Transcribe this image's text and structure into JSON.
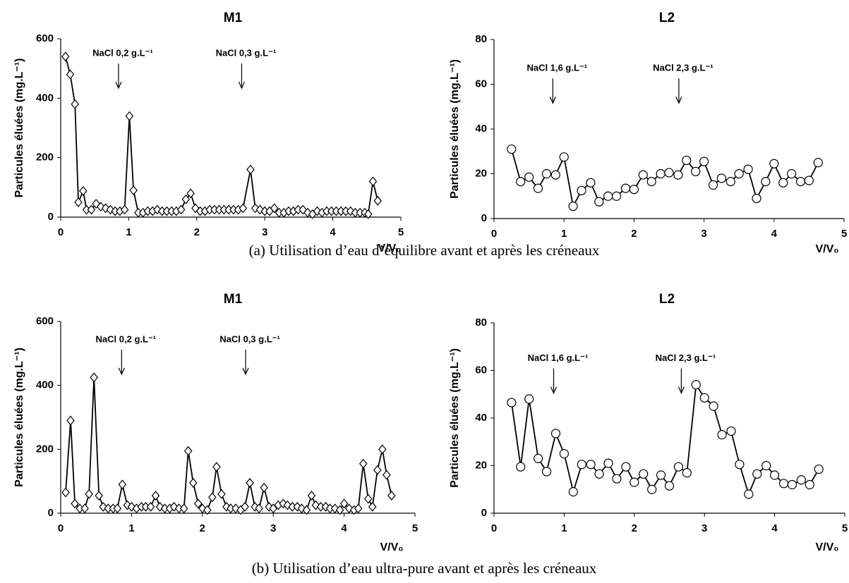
{
  "chart_data": [
    {
      "type": "line",
      "title": "M1",
      "xlabel": "V/V₀",
      "ylabel": "Particules éluées (mg.L⁻¹)",
      "marker": "diamond",
      "color": "#000000",
      "xlim": [
        0,
        5
      ],
      "xticks": [
        0,
        1,
        2,
        3,
        4,
        5
      ],
      "ylim": [
        0,
        600
      ],
      "yticks": [
        0,
        200,
        400,
        600
      ],
      "annotations": [
        {
          "text": "NaCl 0,2 g.L⁻¹",
          "x": 0.85,
          "y": 550
        },
        {
          "text": "NaCl 0,3 g.L⁻¹",
          "x": 2.66,
          "y": 550
        }
      ],
      "x": [
        0.07,
        0.14,
        0.21,
        0.26,
        0.33,
        0.38,
        0.45,
        0.52,
        0.59,
        0.66,
        0.73,
        0.8,
        0.87,
        0.94,
        1.01,
        1.07,
        1.14,
        1.21,
        1.28,
        1.35,
        1.42,
        1.49,
        1.56,
        1.63,
        1.7,
        1.77,
        1.84,
        1.91,
        1.98,
        2.05,
        2.12,
        2.19,
        2.26,
        2.33,
        2.4,
        2.47,
        2.54,
        2.61,
        2.68,
        2.79,
        2.86,
        2.93,
        3.0,
        3.07,
        3.14,
        3.21,
        3.28,
        3.35,
        3.42,
        3.49,
        3.56,
        3.63,
        3.7,
        3.77,
        3.84,
        3.91,
        3.98,
        4.05,
        4.12,
        4.19,
        4.26,
        4.33,
        4.4,
        4.47,
        4.52,
        4.59,
        4.66
      ],
      "values": [
        540,
        480,
        380,
        50,
        88,
        25,
        25,
        45,
        35,
        30,
        25,
        20,
        20,
        25,
        340,
        90,
        15,
        15,
        20,
        20,
        25,
        20,
        20,
        20,
        20,
        25,
        60,
        80,
        30,
        20,
        20,
        25,
        25,
        25,
        25,
        25,
        25,
        25,
        30,
        160,
        30,
        25,
        20,
        20,
        30,
        15,
        15,
        20,
        20,
        25,
        25,
        15,
        10,
        20,
        15,
        20,
        20,
        20,
        20,
        20,
        20,
        15,
        15,
        15,
        10,
        120,
        55
      ]
    },
    {
      "type": "line",
      "title": "L2",
      "xlabel": "V/V₀",
      "ylabel": "Particules éluées (mg.L⁻¹)",
      "marker": "circle",
      "color": "#000000",
      "xlim": [
        0,
        5
      ],
      "xticks": [
        0,
        1,
        2,
        3,
        4,
        5
      ],
      "ylim": [
        0,
        80
      ],
      "yticks": [
        0,
        20,
        40,
        60,
        80
      ],
      "annotations": [
        {
          "text": "NaCl 1,6 g.L⁻¹",
          "x": 0.84,
          "y": 67
        },
        {
          "text": "NaCl 2,3 g.L⁻¹",
          "x": 2.64,
          "y": 67
        }
      ],
      "x": [
        0.25,
        0.38,
        0.5,
        0.63,
        0.75,
        0.88,
        1.0,
        1.13,
        1.25,
        1.38,
        1.5,
        1.63,
        1.75,
        1.88,
        2.0,
        2.13,
        2.25,
        2.38,
        2.5,
        2.63,
        2.75,
        2.88,
        3.0,
        3.13,
        3.25,
        3.38,
        3.5,
        3.63,
        3.75,
        3.88,
        4.0,
        4.13,
        4.25,
        4.38,
        4.5,
        4.63
      ],
      "values": [
        31,
        16.5,
        18.5,
        13.5,
        20,
        19.5,
        27.5,
        5.5,
        12.5,
        16,
        7.5,
        10,
        10,
        13.5,
        13,
        19.5,
        16.5,
        20,
        20.5,
        19.5,
        26,
        21,
        25.5,
        15,
        18,
        16.5,
        20,
        22,
        9,
        16.5,
        24.5,
        16,
        20,
        16.5,
        17,
        25
      ]
    },
    {
      "type": "line",
      "title": "M1",
      "xlabel": "V/V₀",
      "ylabel": "Particules éluées (mg.L⁻¹)",
      "marker": "diamond",
      "color": "#000000",
      "xlim": [
        0,
        5
      ],
      "xticks": [
        0,
        1,
        2,
        3,
        4,
        5
      ],
      "ylim": [
        0,
        600
      ],
      "yticks": [
        0,
        200,
        400,
        600
      ],
      "annotations": [
        {
          "text": "NaCl 0,2 g.L⁻¹",
          "x": 0.86,
          "y": 543
        },
        {
          "text": "NaCl 0,3 g.L⁻¹",
          "x": 2.61,
          "y": 543
        }
      ],
      "x": [
        0.07,
        0.14,
        0.2,
        0.27,
        0.34,
        0.4,
        0.47,
        0.54,
        0.6,
        0.67,
        0.74,
        0.8,
        0.87,
        0.94,
        1.0,
        1.07,
        1.14,
        1.2,
        1.27,
        1.34,
        1.4,
        1.47,
        1.54,
        1.6,
        1.67,
        1.74,
        1.8,
        1.87,
        1.94,
        2.0,
        2.07,
        2.14,
        2.2,
        2.27,
        2.34,
        2.4,
        2.47,
        2.54,
        2.6,
        2.67,
        2.74,
        2.8,
        2.87,
        2.94,
        3.0,
        3.07,
        3.14,
        3.2,
        3.27,
        3.34,
        3.4,
        3.47,
        3.54,
        3.6,
        3.67,
        3.74,
        3.8,
        3.87,
        3.94,
        4.0,
        4.07,
        4.14,
        4.2,
        4.27,
        4.34,
        4.4,
        4.47,
        4.54,
        4.6,
        4.67
      ],
      "values": [
        65,
        290,
        30,
        15,
        15,
        60,
        425,
        55,
        20,
        15,
        15,
        15,
        90,
        25,
        20,
        15,
        20,
        20,
        20,
        55,
        20,
        15,
        15,
        20,
        15,
        15,
        195,
        95,
        30,
        15,
        10,
        50,
        145,
        60,
        20,
        15,
        15,
        10,
        20,
        95,
        20,
        15,
        80,
        20,
        15,
        25,
        30,
        25,
        20,
        20,
        15,
        10,
        55,
        25,
        20,
        20,
        15,
        15,
        10,
        30,
        15,
        10,
        15,
        155,
        45,
        20,
        135,
        200,
        120,
        55
      ]
    },
    {
      "type": "line",
      "title": "L2",
      "xlabel": "V/V₀",
      "ylabel": "Particules éluées (mg.L⁻¹)",
      "marker": "circle",
      "color": "#000000",
      "xlim": [
        0,
        5
      ],
      "xticks": [
        0,
        1,
        2,
        3,
        4,
        5
      ],
      "ylim": [
        0,
        80
      ],
      "yticks": [
        0,
        20,
        40,
        60,
        80
      ],
      "annotations": [
        {
          "text": "NaCl 1,6 g.L⁻¹",
          "x": 0.85,
          "y": 65
        },
        {
          "text": "NaCl 2,3 g.L⁻¹",
          "x": 2.67,
          "y": 65
        }
      ],
      "x": [
        0.25,
        0.38,
        0.5,
        0.63,
        0.75,
        0.88,
        1.0,
        1.13,
        1.25,
        1.38,
        1.5,
        1.63,
        1.75,
        1.88,
        2.0,
        2.13,
        2.25,
        2.38,
        2.5,
        2.63,
        2.75,
        2.88,
        3.0,
        3.13,
        3.25,
        3.38,
        3.5,
        3.63,
        3.75,
        3.88,
        4.0,
        4.13,
        4.25,
        4.38,
        4.5,
        4.63
      ],
      "values": [
        46.5,
        19.5,
        48,
        23,
        17.5,
        33.5,
        25,
        9,
        20.5,
        20.5,
        16.5,
        21,
        14.5,
        19.5,
        13,
        16.5,
        10,
        16,
        11.5,
        19.5,
        17,
        54,
        48.5,
        45,
        33,
        34.5,
        20.5,
        8,
        16.5,
        20,
        16,
        12.5,
        12,
        14,
        12,
        18.5
      ]
    }
  ],
  "captions": [
    "(a) Utilisation d’eau d’équilibre avant et après les créneaux",
    "(b) Utilisation d’eau ultra-pure avant et après les créneaux"
  ]
}
